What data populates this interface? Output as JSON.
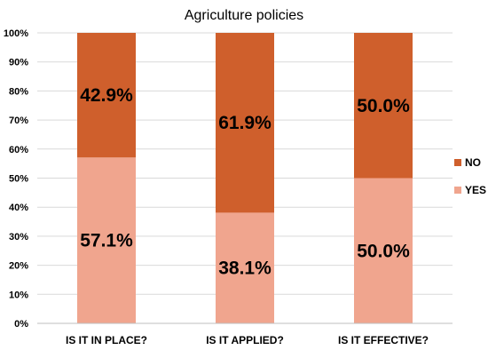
{
  "chart_data": {
    "type": "bar",
    "stacked": true,
    "title": "Agriculture policies",
    "xlabel": "",
    "ylabel": "",
    "categories": [
      "IS IT IN PLACE?",
      "IS IT APPLIED?",
      "IS IT EFFECTIVE?"
    ],
    "series": [
      {
        "name": "YES",
        "values": [
          57.1,
          38.1,
          50.0
        ],
        "color": "#f0a58e",
        "labels": [
          "57.1%",
          "38.1%",
          "50.0%"
        ]
      },
      {
        "name": "NO",
        "values": [
          42.9,
          61.9,
          50.0
        ],
        "color": "#cf5f2c",
        "labels": [
          "42.9%",
          "61.9%",
          "50.0%"
        ]
      }
    ],
    "y_ticks": [
      "0%",
      "10%",
      "20%",
      "30%",
      "40%",
      "50%",
      "60%",
      "70%",
      "80%",
      "90%",
      "100%"
    ],
    "ylim": [
      0,
      100
    ],
    "grid": true,
    "legend_position": "right",
    "legend": [
      "NO",
      "YES"
    ]
  }
}
